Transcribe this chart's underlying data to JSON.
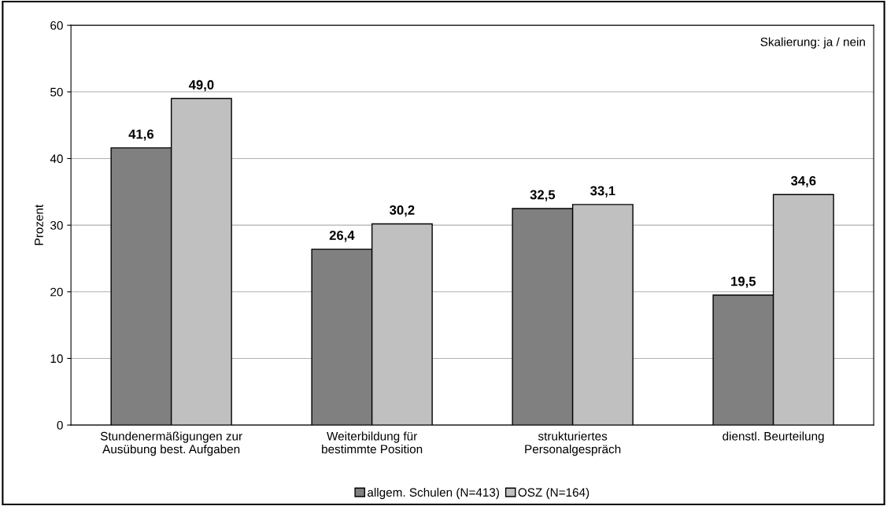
{
  "chart_data": {
    "type": "bar",
    "ylabel": "Prozent",
    "categories": [
      "Stundenermäßigungen zur\nAusübung best. Aufgaben",
      "Weiterbildung für\nbestimmte Position",
      "strukturiertes\nPersonalgespräch",
      "dienstl. Beurteilung"
    ],
    "series": [
      {
        "name": "allgem. Schulen (N=413)",
        "color": "#808080",
        "values": [
          41.6,
          26.4,
          32.5,
          19.5
        ],
        "value_labels": [
          "41,6",
          "26,4",
          "32,5",
          "19,5"
        ]
      },
      {
        "name": "OSZ (N=164)",
        "color": "#c0c0c0",
        "values": [
          49.0,
          30.2,
          33.1,
          34.6
        ],
        "value_labels": [
          "49,0",
          "30,2",
          "33,1",
          "34,6"
        ]
      }
    ],
    "ylim": [
      0,
      60
    ],
    "yticks": [
      0,
      10,
      20,
      30,
      40,
      50,
      60
    ],
    "grid": "y",
    "legend": "bottom",
    "annotations": [
      "Skalierung: ja / nein"
    ]
  }
}
